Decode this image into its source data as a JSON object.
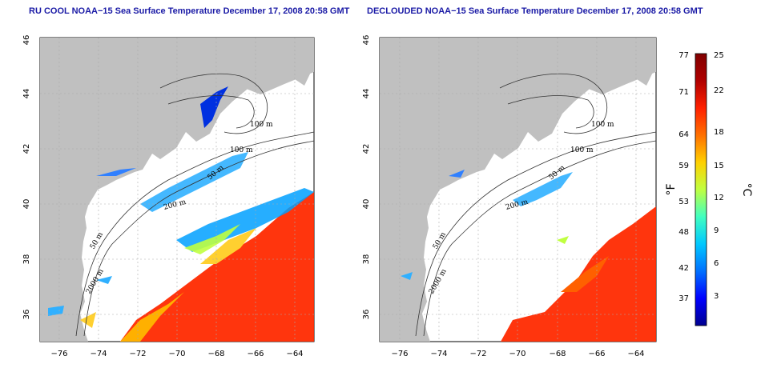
{
  "titles": {
    "left": "RU COOL NOAA−15 Sea Surface Temperature December 17, 2008 20:58 GMT",
    "right": "DECLOUDED NOAA−15 Sea Surface Temperature December 17, 2008 20:58 GMT"
  },
  "axes": {
    "x_ticks": [
      "−76",
      "−74",
      "−72",
      "−70",
      "−68",
      "−66",
      "−64"
    ],
    "y_ticks": [
      "36",
      "38",
      "40",
      "42",
      "44",
      "46"
    ]
  },
  "contour_labels": [
    "100 m",
    "100 m",
    "50 m",
    "200 m",
    "50 m",
    "2000 m"
  ],
  "colorbar": {
    "fahrenheit_ticks": [
      "77",
      "71",
      "64",
      "59",
      "53",
      "48",
      "42",
      "37"
    ],
    "celsius_ticks": [
      "25",
      "22",
      "18",
      "15",
      "12",
      "9",
      "6",
      "3"
    ],
    "fahrenheit_unit": "°F",
    "celsius_unit": "°C",
    "colors": [
      "#00008f",
      "#0000ff",
      "#0070ff",
      "#00c8ff",
      "#40ffc0",
      "#c0ff40",
      "#ffd000",
      "#ff7000",
      "#ff2000",
      "#b00000",
      "#800000"
    ]
  },
  "map_colors": {
    "land": "#c0c0c0",
    "ocean": "#ffffff",
    "grid": "#aaaaaa"
  }
}
